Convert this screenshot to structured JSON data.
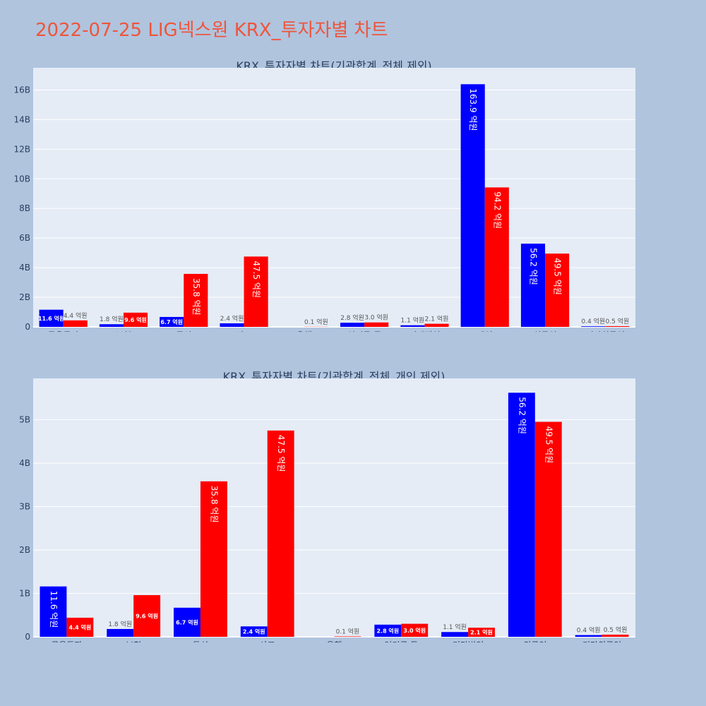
{
  "page_title": "2022-07-25 LIG넥스원 KRX_투자자별 차트",
  "colors": {
    "background": "#b0c4de",
    "plot_bg": "#e5ecf6",
    "grid": "#ffffff",
    "series_a": "#0000ff",
    "series_b": "#ff0000",
    "title": "#ef553b",
    "text": "#2a3f5f"
  },
  "chart_data": [
    {
      "type": "bar",
      "title": "KRX_투자자별 차트(기관합계_전체 제외)",
      "categories": [
        "금융투자",
        "보험",
        "투신",
        "사모",
        "은행",
        "연기금 등",
        "기타법인",
        "개인",
        "외국인",
        "기타외국인"
      ],
      "series": [
        {
          "values": [
            1160000000,
            180000000,
            670000000,
            240000000,
            0,
            280000000,
            110000000,
            16390000000,
            5620000000,
            40000000
          ],
          "labels": [
            "11.6 억원",
            "1.8 억원",
            "6.7 억원",
            "2.4 억원",
            "",
            "2.8 억원",
            "1.1 억원",
            "163.9 억원",
            "56.2 억원",
            "0.4 억원"
          ]
        },
        {
          "values": [
            440000000,
            960000000,
            3580000000,
            4750000000,
            10000000,
            300000000,
            210000000,
            9420000000,
            4950000000,
            50000000
          ],
          "labels": [
            "4.4 억원",
            "9.6 억원",
            "35.8 억원",
            "47.5 억원",
            "0.1 억원",
            "3.0 억원",
            "2.1 억원",
            "94.2 억원",
            "49.5 억원",
            "0.5 억원"
          ]
        }
      ],
      "ylim": [
        0,
        17500000000
      ],
      "yticks": [
        0,
        2000000000,
        4000000000,
        6000000000,
        8000000000,
        10000000000,
        12000000000,
        14000000000,
        16000000000
      ],
      "ytick_labels": [
        "0",
        "2B",
        "4B",
        "6B",
        "8B",
        "10B",
        "12B",
        "14B",
        "16B"
      ],
      "grid": true,
      "legend": "none"
    },
    {
      "type": "bar",
      "title": "KRX_투자자별 차트(기관합계_전체_개인 제외)",
      "categories": [
        "금융투자",
        "보험",
        "투신",
        "사모",
        "은행",
        "연기금 등",
        "기타법인",
        "외국인",
        "기타외국인"
      ],
      "series": [
        {
          "values": [
            1160000000,
            180000000,
            670000000,
            240000000,
            0,
            280000000,
            110000000,
            5620000000,
            40000000
          ],
          "labels": [
            "11.6 억원",
            "1.8 억원",
            "6.7 억원",
            "2.4 억원",
            "",
            "2.8 억원",
            "1.1 억원",
            "56.2 억원",
            "0.4 억원"
          ]
        },
        {
          "values": [
            440000000,
            960000000,
            3580000000,
            4750000000,
            10000000,
            300000000,
            210000000,
            4950000000,
            50000000
          ],
          "labels": [
            "4.4 억원",
            "9.6 억원",
            "35.8 억원",
            "47.5 억원",
            "0.1 억원",
            "3.0 억원",
            "2.1 억원",
            "49.5 억원",
            "0.5 억원"
          ]
        }
      ],
      "ylim": [
        0,
        5950000000
      ],
      "yticks": [
        0,
        1000000000,
        2000000000,
        3000000000,
        4000000000,
        5000000000
      ],
      "ytick_labels": [
        "0",
        "1B",
        "2B",
        "3B",
        "4B",
        "5B"
      ],
      "grid": true,
      "legend": "none"
    }
  ]
}
